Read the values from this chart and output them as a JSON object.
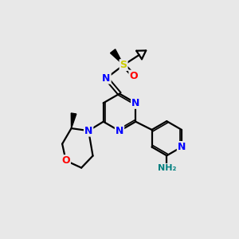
{
  "bg_color": "#e8e8e8",
  "atom_colors": {
    "N": "#0000ff",
    "O": "#ff0000",
    "S": "#cccc00",
    "C": "#000000",
    "NH2": "#008080"
  }
}
